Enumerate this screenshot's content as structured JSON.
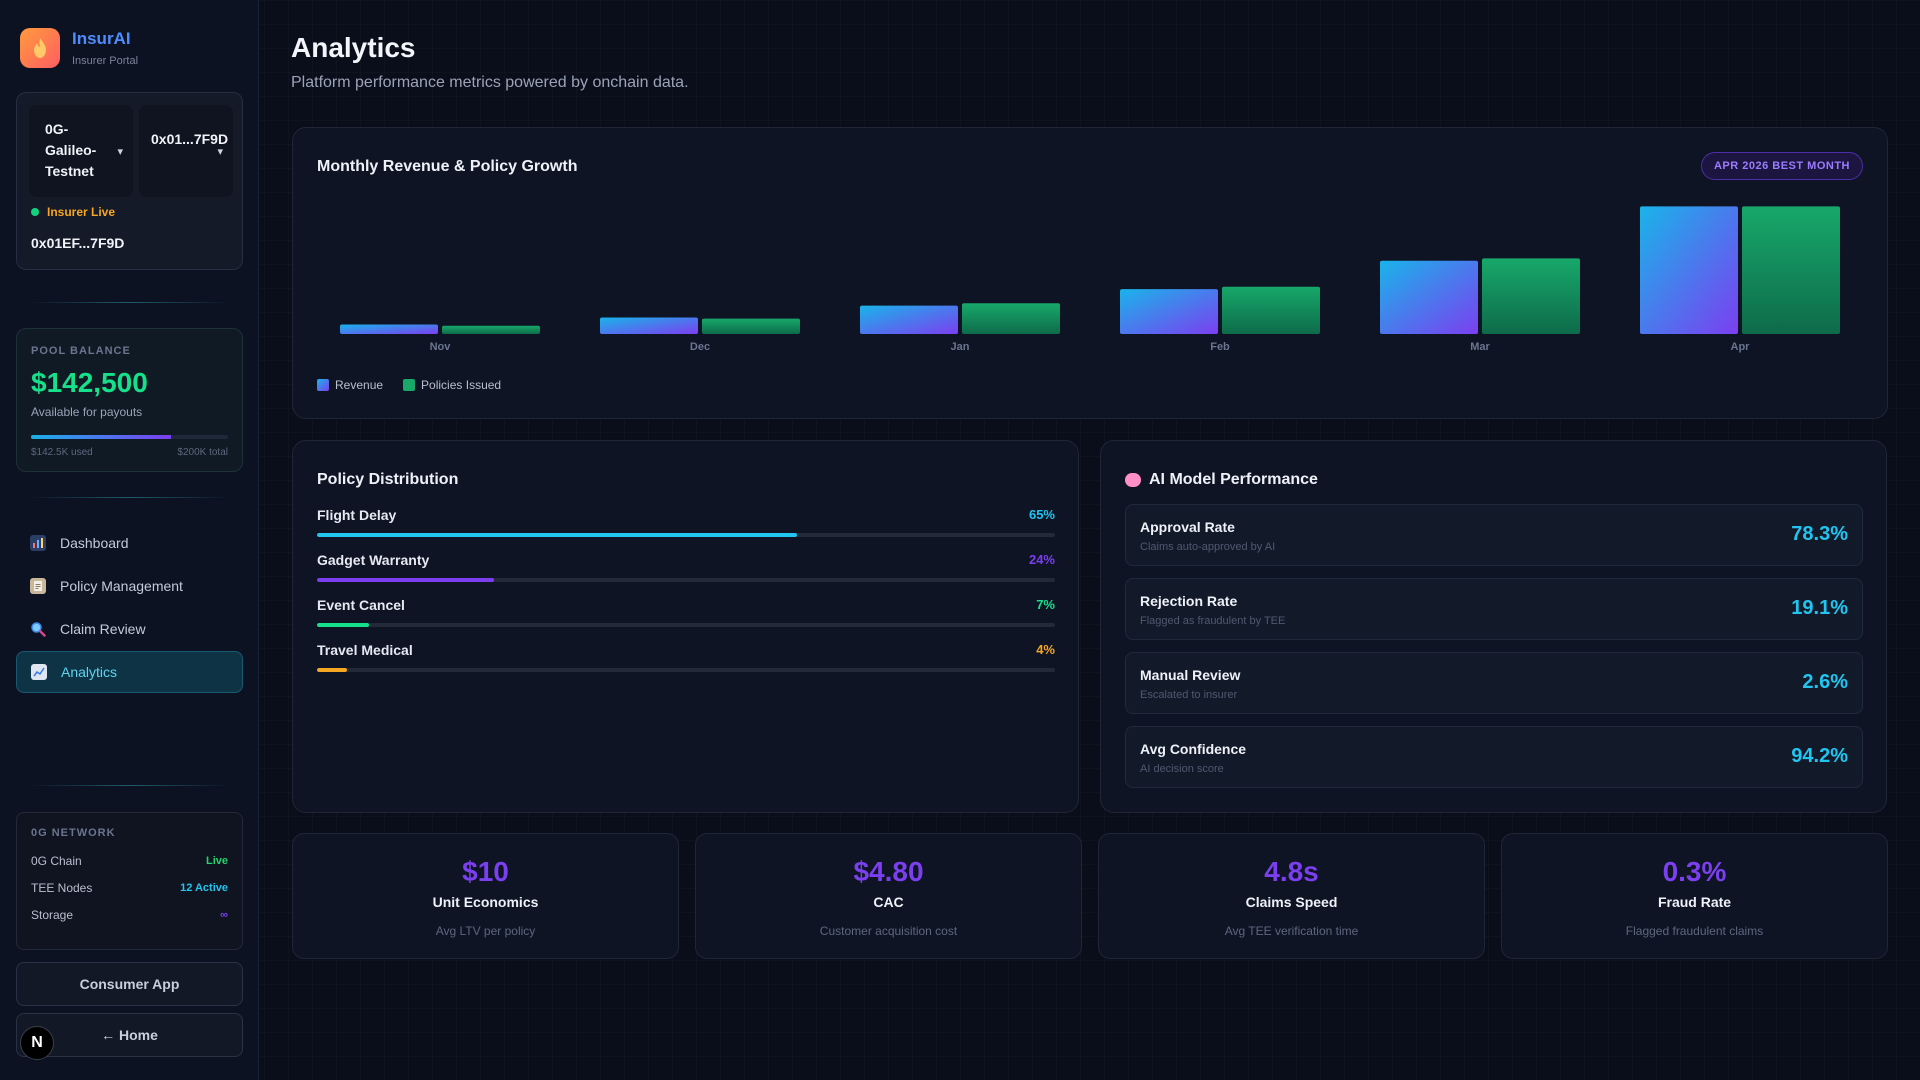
{
  "brand": {
    "name": "InsurAI",
    "subtitle": "Insurer Portal"
  },
  "wallet": {
    "chain": "0G-Galileo-Testnet",
    "address_short": "0x01...7F9D",
    "status": "Insurer Live",
    "address": "0x01EF...7F9D"
  },
  "pool": {
    "label": "POOL BALANCE",
    "value": "$142,500",
    "subtitle": "Available for payouts",
    "used": "$142.5K used",
    "total": "$200K total",
    "fill_fraction": 0.71
  },
  "nav": [
    {
      "label": "Dashboard",
      "icon": "chart-icon"
    },
    {
      "label": "Policy Management",
      "icon": "clipboard-icon"
    },
    {
      "label": "Claim Review",
      "icon": "magnifier-icon"
    },
    {
      "label": "Analytics",
      "icon": "trend-icon",
      "active": true
    }
  ],
  "network": {
    "title": "0G NETWORK",
    "rows": [
      {
        "label": "0G Chain",
        "value": "Live",
        "color": "#22d36c"
      },
      {
        "label": "TEE Nodes",
        "value": "12 Active",
        "color": "#22c4f0"
      },
      {
        "label": "Storage",
        "value": "∞",
        "color": "#7b3ff0"
      }
    ]
  },
  "buttons": {
    "consumer": "Consumer App",
    "home": "← Home"
  },
  "page": {
    "title": "Analytics",
    "subtitle": "Platform performance metrics powered by onchain data."
  },
  "revenue_panel": {
    "title": "Monthly Revenue & Policy Growth",
    "badge": "APR 2026 BEST MONTH",
    "legend": [
      "Revenue",
      "Policies Issued"
    ]
  },
  "chart_data": {
    "type": "bar",
    "title": "Monthly Revenue & Policy Growth",
    "categories": [
      "Nov",
      "Dec",
      "Jan",
      "Feb",
      "Mar",
      "Apr"
    ],
    "series": [
      {
        "name": "Revenue",
        "values": [
          8,
          14,
          24,
          38,
          62,
          108
        ]
      },
      {
        "name": "Policies Issued",
        "values": [
          7,
          13,
          26,
          40,
          64,
          108
        ]
      }
    ],
    "ylim": [
      0,
      110
    ],
    "legend": "bottom-left",
    "grid": false,
    "colors": {
      "revenue": [
        "#19b4ea",
        "#7b3ff0"
      ],
      "policies": [
        "#17a86a",
        "#0e6b4a"
      ]
    }
  },
  "distribution": {
    "title": "Policy Distribution",
    "items": [
      {
        "name": "Flight Delay",
        "pct": "65%",
        "value": 0.65,
        "color": "#22c4f0"
      },
      {
        "name": "Gadget Warranty",
        "pct": "24%",
        "value": 0.24,
        "color": "#7b3ff0"
      },
      {
        "name": "Event Cancel",
        "pct": "7%",
        "value": 0.07,
        "color": "#17e08a"
      },
      {
        "name": "Travel Medical",
        "pct": "4%",
        "value": 0.04,
        "color": "#f5a623"
      }
    ]
  },
  "ai_panel": {
    "title": "AI Model Performance",
    "items": [
      {
        "title": "Approval Rate",
        "sub": "Claims auto-approved by AI",
        "value": "78.3%"
      },
      {
        "title": "Rejection Rate",
        "sub": "Flagged as fraudulent by TEE",
        "value": "19.1%"
      },
      {
        "title": "Manual Review",
        "sub": "Escalated to insurer",
        "value": "2.6%"
      },
      {
        "title": "Avg Confidence",
        "sub": "AI decision score",
        "value": "94.2%"
      }
    ]
  },
  "stats": [
    {
      "value": "$10",
      "title": "Unit Economics",
      "sub": "Avg LTV per policy"
    },
    {
      "value": "$4.80",
      "title": "CAC",
      "sub": "Customer acquisition cost"
    },
    {
      "value": "4.8s",
      "title": "Claims Speed",
      "sub": "Avg TEE verification time"
    },
    {
      "value": "0.3%",
      "title": "Fraud Rate",
      "sub": "Flagged fraudulent claims"
    }
  ],
  "badge_letter": "N"
}
